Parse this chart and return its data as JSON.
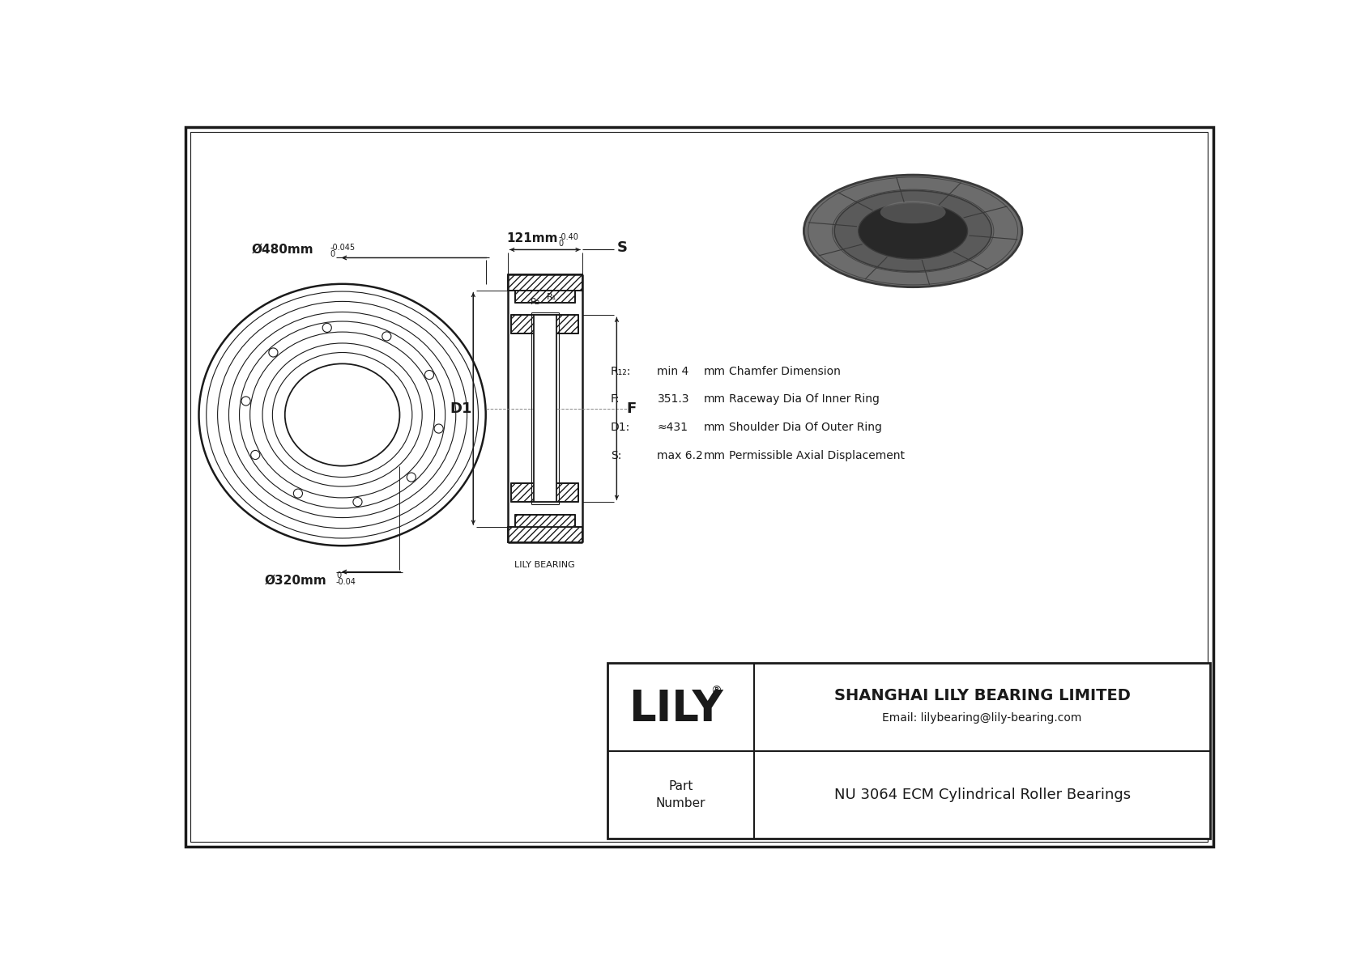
{
  "bg_color": "#ffffff",
  "line_color": "#1a1a1a",
  "dim_outer_main": "Ø480mm",
  "dim_outer_tol_top": "0",
  "dim_outer_tol_bot": "-0.045",
  "dim_inner_main": "Ø320mm",
  "dim_inner_tol_top": "0",
  "dim_inner_tol_bot": "-0.04",
  "dim_width_main": "121mm",
  "dim_width_tol_top": "0",
  "dim_width_tol_bot": "-0.40",
  "label_D1": "D1",
  "label_F": "F",
  "label_S": "S",
  "label_R2": "R₂",
  "label_R1": "R₁",
  "spec_rows": [
    {
      "label": "R₁₂:",
      "val": "min 4",
      "unit": "mm",
      "desc": "Chamfer Dimension"
    },
    {
      "label": "F:",
      "val": "351.3",
      "unit": "mm",
      "desc": "Raceway Dia Of Inner Ring"
    },
    {
      "label": "D1:",
      "val": "≈431",
      "unit": "mm",
      "desc": "Shoulder Dia Of Outer Ring"
    },
    {
      "label": "S:",
      "val": "max 6.2",
      "unit": "mm",
      "desc": "Permissible Axial Displacement"
    }
  ],
  "lily_bearing_label": "LILY BEARING",
  "company": "SHANGHAI LILY BEARING LIMITED",
  "email": "Email: lilybearing@lily-bearing.com",
  "part_label": "Part\nNumber",
  "part_number": "NU 3064 ECM Cylindrical Roller Bearings",
  "lily_logo": "LILY"
}
